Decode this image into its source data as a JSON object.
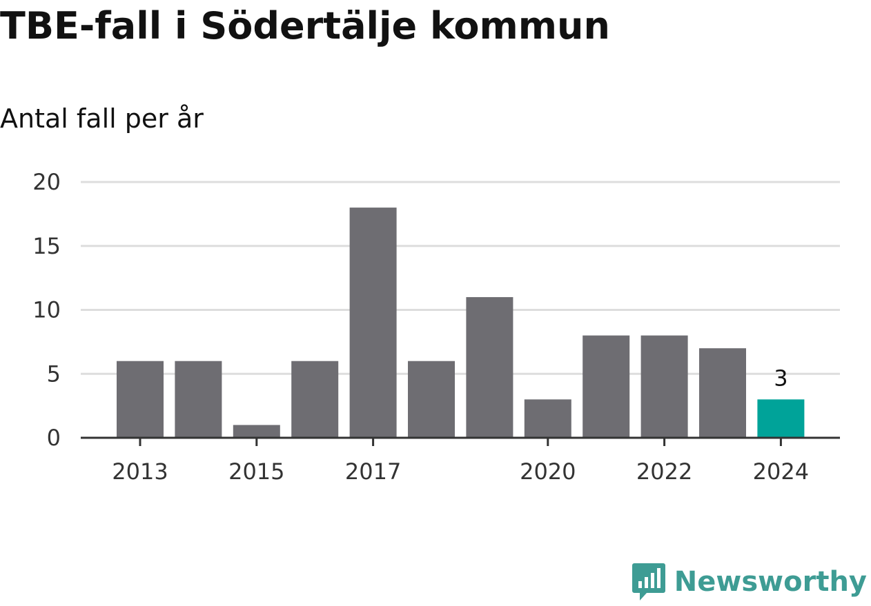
{
  "header": {
    "title": "TBE-fall i Södertälje kommun",
    "subtitle": "Antal fall per år"
  },
  "brand": {
    "name": "Newsworthy",
    "icon": "newsworthy-logo-icon",
    "color": "#3e9c94"
  },
  "colors": {
    "bar": "#6e6d72",
    "highlight": "#00a399",
    "grid": "#dddddd",
    "axis": "#333333"
  },
  "chart_data": {
    "type": "bar",
    "categories": [
      "2013",
      "2014",
      "2015",
      "2016",
      "2017",
      "2018",
      "2019",
      "2020",
      "2021",
      "2022",
      "2023",
      "2024"
    ],
    "values": [
      6,
      6,
      1,
      6,
      18,
      6,
      11,
      3,
      8,
      8,
      7,
      3
    ],
    "x_tick_labels": [
      "2013",
      "2015",
      "2017",
      "2020",
      "2022",
      "2024"
    ],
    "y_ticks": [
      "0",
      "5",
      "10",
      "15",
      "20"
    ],
    "ylim": [
      0,
      20
    ],
    "grid": true,
    "highlight_category": "2024",
    "data_labels": [
      {
        "category": "2024",
        "text": "3"
      }
    ],
    "xlabel": "",
    "ylabel": ""
  }
}
